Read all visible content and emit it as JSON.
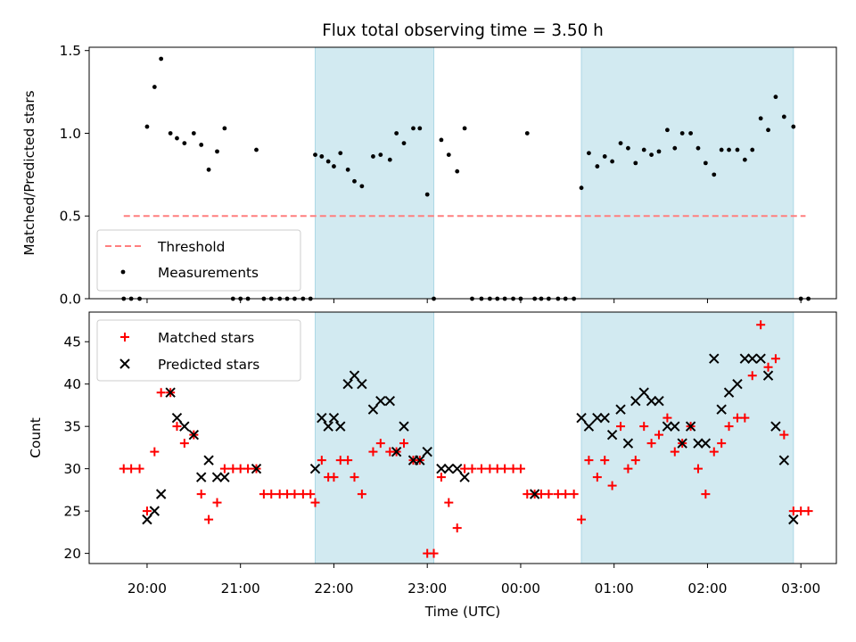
{
  "chart_data": [
    {
      "type": "scatter",
      "panel": "top",
      "title": "Flux total observing time = 3.50 h",
      "ylabel": "Matched/Predicted stars",
      "ylim": [
        0,
        1.52
      ],
      "yticks": [
        0.0,
        0.5,
        1.0,
        1.5
      ],
      "ytick_labels": [
        "0.0",
        "0.5",
        "1.0",
        "1.5"
      ],
      "x_unit": "hours after 20:00 UTC",
      "xlim": [
        -0.62,
        7.38
      ],
      "shaded_intervals": [
        [
          1.8,
          3.07
        ],
        [
          4.65,
          6.92
        ]
      ],
      "shade_color": "#add8e6",
      "threshold": {
        "name": "Threshold",
        "value": 0.5,
        "x": [
          -0.25,
          7.05
        ],
        "color": "#ff7f7f"
      },
      "legend": {
        "position": "lower left",
        "entries": [
          "Threshold",
          "Measurements"
        ]
      },
      "series": [
        {
          "name": "Measurements",
          "marker": "dot",
          "color": "#000000",
          "x": [
            -0.25,
            -0.17,
            -0.08,
            0.0,
            0.08,
            0.15,
            0.25,
            0.32,
            0.4,
            0.5,
            0.58,
            0.66,
            0.75,
            0.83,
            0.92,
            1.0,
            1.08,
            1.17,
            1.25,
            1.33,
            1.42,
            1.5,
            1.58,
            1.67,
            1.75,
            1.8,
            1.87,
            1.94,
            2.0,
            2.07,
            2.15,
            2.22,
            2.3,
            2.42,
            2.5,
            2.6,
            2.67,
            2.75,
            2.85,
            2.92,
            3.0,
            3.07,
            3.15,
            3.23,
            3.32,
            3.4,
            3.48,
            3.58,
            3.67,
            3.75,
            3.83,
            3.92,
            4.0,
            4.07,
            4.15,
            4.22,
            4.3,
            4.4,
            4.48,
            4.57,
            4.65,
            4.73,
            4.82,
            4.9,
            4.98,
            5.07,
            5.15,
            5.23,
            5.32,
            5.4,
            5.48,
            5.57,
            5.65,
            5.73,
            5.82,
            5.9,
            5.98,
            6.07,
            6.15,
            6.23,
            6.32,
            6.4,
            6.48,
            6.57,
            6.65,
            6.73,
            6.82,
            6.92,
            7.0,
            7.08
          ],
          "y": [
            0.0,
            0.0,
            0.0,
            1.04,
            1.28,
            1.45,
            1.0,
            0.97,
            0.94,
            1.0,
            0.93,
            0.78,
            0.89,
            1.03,
            0.0,
            0.0,
            0.0,
            0.9,
            0.0,
            0.0,
            0.0,
            0.0,
            0.0,
            0.0,
            0.0,
            0.87,
            0.86,
            0.83,
            0.8,
            0.88,
            0.78,
            0.71,
            0.68,
            0.86,
            0.87,
            0.84,
            1.0,
            0.94,
            1.03,
            1.03,
            0.63,
            0.0,
            0.96,
            0.87,
            0.77,
            1.03,
            0.0,
            0.0,
            0.0,
            0.0,
            0.0,
            0.0,
            0.0,
            1.0,
            0.0,
            0.0,
            0.0,
            0.0,
            0.0,
            0.0,
            0.67,
            0.88,
            0.8,
            0.86,
            0.83,
            0.94,
            0.91,
            0.82,
            0.9,
            0.87,
            0.89,
            1.02,
            0.91,
            1.0,
            1.0,
            0.91,
            0.82,
            0.75,
            0.9,
            0.9,
            0.9,
            0.84,
            0.9,
            1.09,
            1.02,
            1.22,
            1.1,
            1.04,
            0.0,
            0.0
          ]
        }
      ]
    },
    {
      "type": "scatter",
      "panel": "bottom",
      "xlabel": "Time (UTC)",
      "ylabel": "Count",
      "ylim": [
        18.8,
        48.5
      ],
      "yticks": [
        20,
        25,
        30,
        35,
        40,
        45
      ],
      "ytick_labels": [
        "20",
        "25",
        "30",
        "35",
        "40",
        "45"
      ],
      "xlim": [
        -0.62,
        7.38
      ],
      "xticks": [
        0,
        1,
        2,
        3,
        4,
        5,
        6,
        7
      ],
      "xtick_labels": [
        "20:00",
        "21:00",
        "22:00",
        "23:00",
        "00:00",
        "01:00",
        "02:00",
        "03:00"
      ],
      "shaded_intervals": [
        [
          1.8,
          3.07
        ],
        [
          4.65,
          6.92
        ]
      ],
      "shade_color": "#add8e6",
      "legend": {
        "position": "upper left",
        "entries": [
          "Matched stars",
          "Predicted stars"
        ]
      },
      "series": [
        {
          "name": "Matched stars",
          "marker": "plus",
          "color": "#ff0000",
          "x": [
            -0.25,
            -0.17,
            -0.08,
            0.0,
            0.08,
            0.15,
            0.25,
            0.32,
            0.4,
            0.5,
            0.58,
            0.66,
            0.75,
            0.83,
            0.92,
            1.0,
            1.08,
            1.17,
            1.25,
            1.33,
            1.42,
            1.5,
            1.58,
            1.67,
            1.75,
            1.8,
            1.87,
            1.94,
            2.0,
            2.07,
            2.15,
            2.22,
            2.3,
            2.42,
            2.5,
            2.6,
            2.67,
            2.75,
            2.85,
            2.92,
            3.0,
            3.07,
            3.15,
            3.23,
            3.32,
            3.4,
            3.48,
            3.58,
            3.67,
            3.75,
            3.83,
            3.92,
            4.0,
            4.07,
            4.15,
            4.22,
            4.3,
            4.4,
            4.48,
            4.57,
            4.65,
            4.73,
            4.82,
            4.9,
            4.98,
            5.07,
            5.15,
            5.23,
            5.32,
            5.4,
            5.48,
            5.57,
            5.65,
            5.73,
            5.82,
            5.9,
            5.98,
            6.07,
            6.15,
            6.23,
            6.32,
            6.4,
            6.48,
            6.57,
            6.65,
            6.73,
            6.82,
            6.92,
            7.0,
            7.08
          ],
          "y": [
            30,
            30,
            30,
            25,
            32,
            39,
            39,
            35,
            33,
            34,
            27,
            24,
            26,
            30,
            30,
            30,
            30,
            30,
            27,
            27,
            27,
            27,
            27,
            27,
            27,
            26,
            31,
            29,
            29,
            31,
            31,
            29,
            27,
            32,
            33,
            32,
            32,
            33,
            31,
            31,
            20,
            20,
            29,
            26,
            23,
            30,
            30,
            30,
            30,
            30,
            30,
            30,
            30,
            27,
            27,
            27,
            27,
            27,
            27,
            27,
            24,
            31,
            29,
            31,
            28,
            35,
            30,
            31,
            35,
            33,
            34,
            36,
            32,
            33,
            35,
            30,
            27,
            32,
            33,
            35,
            36,
            36,
            41,
            47,
            42,
            43,
            34,
            25,
            25,
            25
          ]
        },
        {
          "name": "Predicted stars",
          "marker": "x",
          "color": "#000000",
          "x": [
            0.0,
            0.08,
            0.15,
            0.25,
            0.32,
            0.4,
            0.5,
            0.58,
            0.66,
            0.75,
            0.83,
            1.17,
            1.8,
            1.87,
            1.94,
            2.0,
            2.07,
            2.15,
            2.22,
            2.3,
            2.42,
            2.5,
            2.6,
            2.67,
            2.75,
            2.85,
            2.92,
            3.0,
            3.15,
            3.23,
            3.32,
            3.4,
            4.15,
            4.65,
            4.73,
            4.82,
            4.9,
            4.98,
            5.07,
            5.15,
            5.23,
            5.32,
            5.4,
            5.48,
            5.57,
            5.65,
            5.73,
            5.82,
            5.9,
            5.98,
            6.07,
            6.15,
            6.23,
            6.32,
            6.4,
            6.48,
            6.57,
            6.65,
            6.73,
            6.82,
            6.92
          ],
          "y": [
            24,
            25,
            27,
            39,
            36,
            35,
            34,
            29,
            31,
            29,
            29,
            30,
            30,
            36,
            35,
            36,
            35,
            40,
            41,
            40,
            37,
            38,
            38,
            32,
            35,
            31,
            31,
            32,
            30,
            30,
            30,
            29,
            27,
            36,
            35,
            36,
            36,
            34,
            37,
            33,
            38,
            39,
            38,
            38,
            35,
            35,
            33,
            35,
            33,
            33,
            43,
            37,
            39,
            40,
            43,
            43,
            43,
            41,
            35,
            31,
            24
          ]
        }
      ]
    }
  ]
}
